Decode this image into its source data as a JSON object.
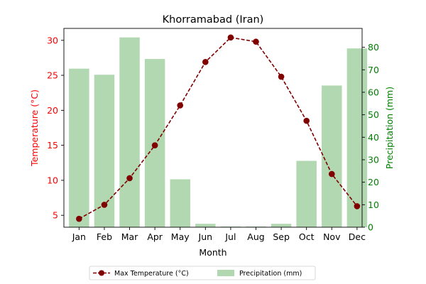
{
  "chart_data": {
    "type": "bar+line",
    "title": "Khorramabad (Iran)",
    "xlabel": "Month",
    "ylabel_left": "Temperature (°C)",
    "ylabel_right": "Precipitation (mm)",
    "categories": [
      "Jan",
      "Feb",
      "Mar",
      "Apr",
      "May",
      "Jun",
      "Jul",
      "Aug",
      "Sep",
      "Oct",
      "Nov",
      "Dec"
    ],
    "temperature": {
      "name": "Max Temperature (°C)",
      "values": [
        4.5,
        6.5,
        10.3,
        15.0,
        20.7,
        26.9,
        30.4,
        29.8,
        24.8,
        18.5,
        10.9,
        6.3
      ],
      "color": "#800000",
      "ylim": [
        3.3,
        31.7
      ],
      "ticks": [
        5,
        10,
        15,
        20,
        25,
        30
      ],
      "axis_color": "#ff0000"
    },
    "precipitation": {
      "name": "Precipitation (mm)",
      "values": [
        70.5,
        67.8,
        84.4,
        74.8,
        21.3,
        1.5,
        0.3,
        0.3,
        1.5,
        29.5,
        63.0,
        79.5
      ],
      "color": "#b2d8b2",
      "ylim": [
        0,
        88.4
      ],
      "ticks": [
        0,
        10,
        20,
        30,
        40,
        50,
        60,
        70,
        80
      ],
      "axis_color": "#008000"
    },
    "legend_position": "bottom-center"
  }
}
